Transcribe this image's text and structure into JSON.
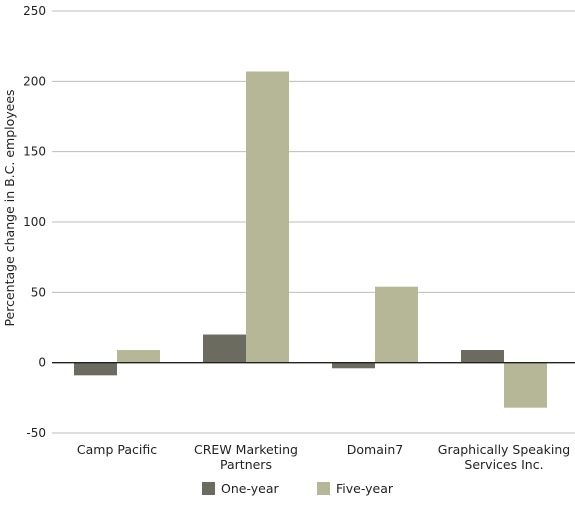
{
  "chart_data": {
    "type": "bar",
    "title": "",
    "xlabel": "",
    "ylabel": "Percentage change in B.C. employees",
    "ylim": [
      -50,
      250
    ],
    "yticks": [
      250,
      200,
      150,
      100,
      50,
      0,
      -50
    ],
    "grid": true,
    "legend_position": "bottom",
    "categories": [
      [
        "Camp Pacific"
      ],
      [
        "CREW Marketing",
        "Partners"
      ],
      [
        "Domain7"
      ],
      [
        "Graphically Speaking",
        "Services Inc."
      ]
    ],
    "series": [
      {
        "name": "One-year",
        "color": "#6b6b60",
        "values": [
          -9,
          20,
          -4,
          9
        ]
      },
      {
        "name": "Five-year",
        "color": "#b6b796",
        "values": [
          9,
          207,
          54,
          -32
        ]
      }
    ]
  }
}
